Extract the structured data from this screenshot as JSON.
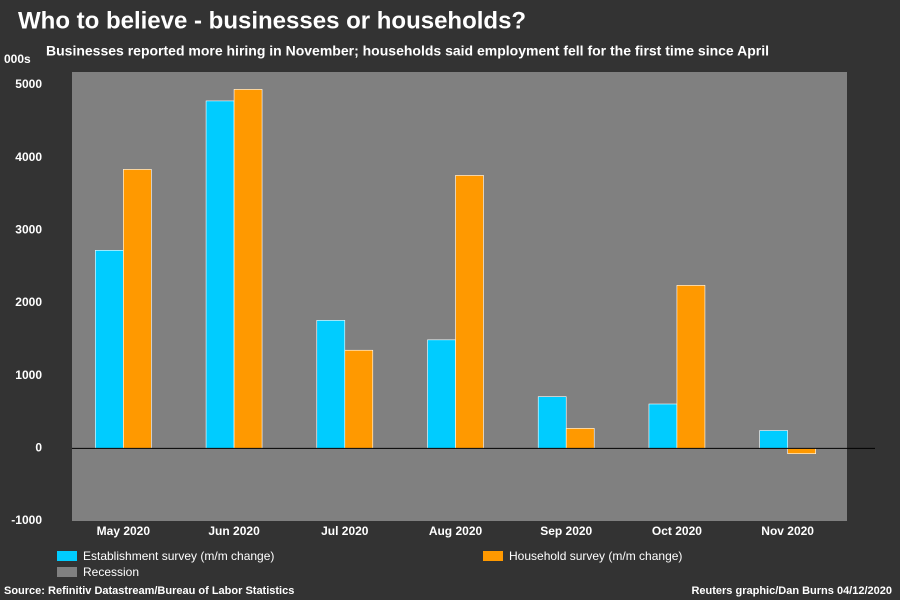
{
  "chart_data": {
    "type": "bar",
    "title": "Who to believe - businesses or households?",
    "subtitle": "Businesses reported more hiring in November; households said employment fell for the first time since April",
    "y_axis_label": "000s",
    "categories": [
      "May 2020",
      "Jun 2020",
      "Jul 2020",
      "Aug 2020",
      "Sep 2020",
      "Oct 2020",
      "Nov 2020"
    ],
    "series": [
      {
        "name": "Establishment survey (m/m change)",
        "color": "#00ccff",
        "values": [
          2725,
          4781,
          1761,
          1493,
          711,
          610,
          245
        ]
      },
      {
        "name": "Household survey (m/m change)",
        "color": "#ff9900",
        "values": [
          3839,
          4940,
          1350,
          3756,
          275,
          2243,
          -74
        ]
      }
    ],
    "shading": {
      "name": "Recession",
      "color": "#808080"
    },
    "ylim": [
      -1000,
      5000
    ],
    "yticks": [
      -1000,
      0,
      1000,
      2000,
      3000,
      4000,
      5000
    ],
    "source": "Source: Refinitiv Datastream/Bureau of Labor Statistics",
    "credit": "Reuters graphic/Dan Burns 04/12/2020"
  }
}
